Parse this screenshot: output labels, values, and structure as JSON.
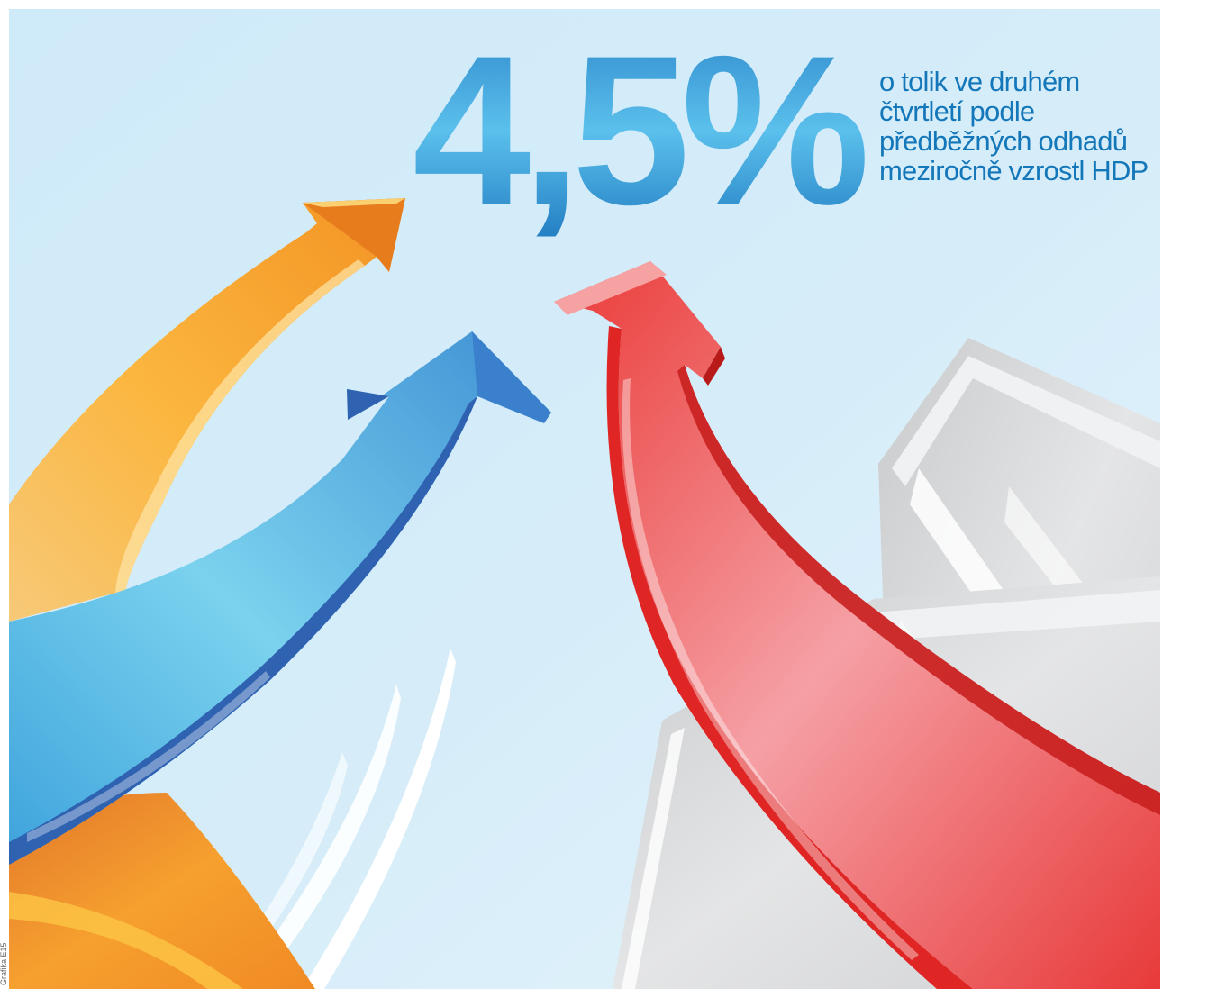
{
  "headline": {
    "value": "4,5%",
    "caption_lines": [
      "o tolik ve druhém",
      "čtvrtletí podle",
      "předběžných odhadů",
      "meziročně vzrostl HDP"
    ]
  },
  "credit": "Grafika E15",
  "illustration": {
    "background_color": "#d3ebf8",
    "arrows": [
      {
        "name": "orange-arrow",
        "color": "#f39a2b"
      },
      {
        "name": "blue-arrow",
        "color": "#4ab3e4"
      },
      {
        "name": "red-arrow",
        "color": "#e83535"
      }
    ],
    "building_color": "#d9dadc",
    "number_gradient": [
      "#2b84c9",
      "#5bc0ec",
      "#1e78bf"
    ],
    "caption_color": "#1477b9"
  }
}
